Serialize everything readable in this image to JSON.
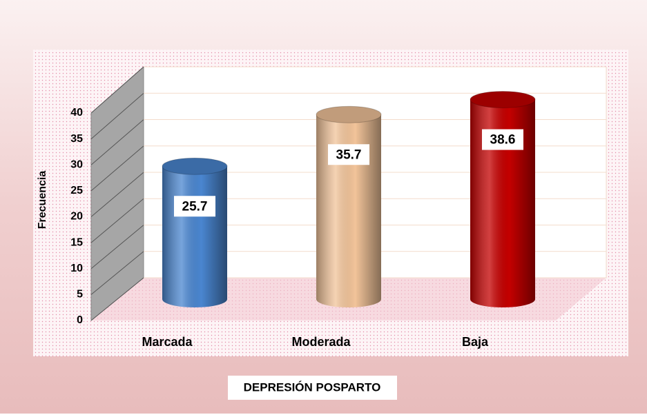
{
  "chart_data": {
    "type": "bar",
    "categories": [
      "Marcada",
      "Moderada",
      "Baja"
    ],
    "values": [
      25.7,
      35.7,
      38.6
    ],
    "colors": [
      "#4a86d0",
      "#f2c49a",
      "#c40000"
    ],
    "ylabel": "Frecuencia",
    "xlabel": "DEPRESIÓN POSPARTO",
    "ylim": [
      0,
      40
    ],
    "yticks": [
      0,
      5,
      10,
      15,
      20,
      25,
      30,
      35,
      40
    ],
    "grid": true
  }
}
